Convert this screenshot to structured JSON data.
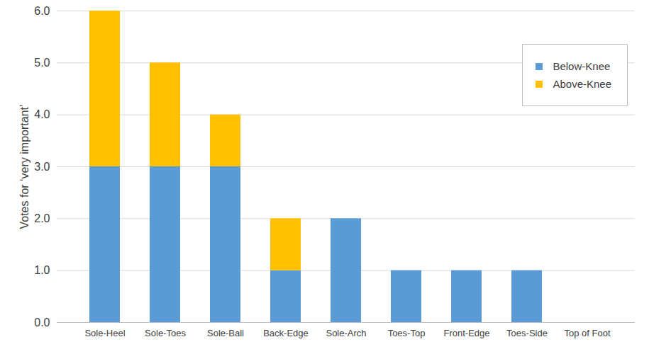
{
  "chart_data": {
    "type": "bar",
    "stacked": true,
    "ylabel": "Votes for ‘very important’",
    "categories": [
      "Sole-Heel",
      "Sole-Toes",
      "Sole-Ball",
      "Back-Edge",
      "Sole-Arch",
      "Toes-Top",
      "Front-Edge",
      "Toes-Side",
      "Top of Foot"
    ],
    "series": [
      {
        "name": "Below-Knee",
        "color": "#5b9bd5",
        "values": [
          3,
          3,
          3,
          1,
          2,
          1,
          1,
          1,
          0
        ]
      },
      {
        "name": "Above-Knee",
        "color": "#ffc000",
        "values": [
          3,
          2,
          1,
          1,
          0,
          0,
          0,
          0,
          0
        ]
      }
    ],
    "ylim": [
      0,
      6
    ],
    "yticks": [
      0,
      1,
      2,
      3,
      4,
      5,
      6
    ],
    "grid": true,
    "legend": "top-right"
  }
}
